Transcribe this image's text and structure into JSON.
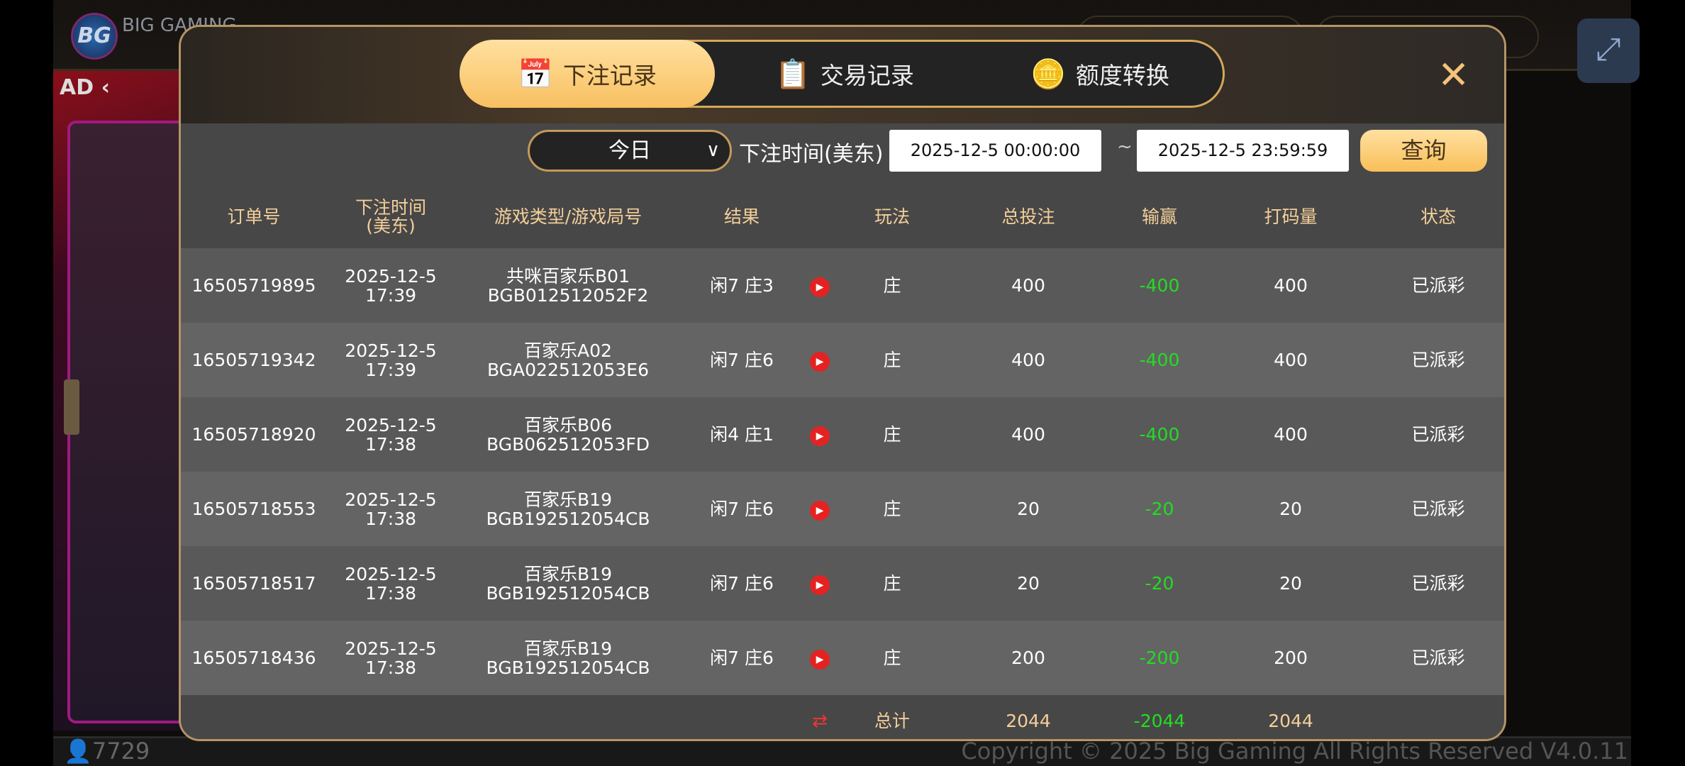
{
  "background": {
    "logo": "BG",
    "logo_text": "BIG GAMING",
    "ad_label": "AD ‹",
    "online_count": "7729",
    "copyright": "Copyright © 2025 Big Gaming All Rights Reserved  V4.0.11"
  },
  "modal": {
    "tabs": [
      {
        "label": "下注记录",
        "icon": "calendar-icon",
        "active": true
      },
      {
        "label": "交易记录",
        "icon": "clipboard-icon",
        "active": false
      },
      {
        "label": "额度转换",
        "icon": "coins-icon",
        "active": false
      }
    ],
    "close_icon": "✕",
    "filter": {
      "range": "今日",
      "time_label": "下注时间(美东)",
      "start": "2025-12-5 00:00:00",
      "tilde": "~",
      "end": "2025-12-5 23:59:59",
      "query": "查询"
    },
    "columns": [
      "订单号",
      "下注时间\n(美东)",
      "游戏类型/游戏局号",
      "结果",
      "",
      "玩法",
      "总投注",
      "输赢",
      "打码量",
      "状态"
    ],
    "rows": [
      {
        "order": "16505719895",
        "date": "2025-12-5",
        "time": "17:39",
        "game": "共咪百家乐B01",
        "round": "BGB012512052F2",
        "result": "闲7 庄3",
        "play": "庄",
        "bet": "400",
        "winloss": "-400",
        "turnover": "400",
        "status": "已派彩"
      },
      {
        "order": "16505719342",
        "date": "2025-12-5",
        "time": "17:39",
        "game": "百家乐A02",
        "round": "BGA022512053E6",
        "result": "闲7 庄6",
        "play": "庄",
        "bet": "400",
        "winloss": "-400",
        "turnover": "400",
        "status": "已派彩"
      },
      {
        "order": "16505718920",
        "date": "2025-12-5",
        "time": "17:38",
        "game": "百家乐B06",
        "round": "BGB062512053FD",
        "result": "闲4 庄1",
        "play": "庄",
        "bet": "400",
        "winloss": "-400",
        "turnover": "400",
        "status": "已派彩"
      },
      {
        "order": "16505718553",
        "date": "2025-12-5",
        "time": "17:38",
        "game": "百家乐B19",
        "round": "BGB192512054CB",
        "result": "闲7 庄6",
        "play": "庄",
        "bet": "20",
        "winloss": "-20",
        "turnover": "20",
        "status": "已派彩"
      },
      {
        "order": "16505718517",
        "date": "2025-12-5",
        "time": "17:38",
        "game": "百家乐B19",
        "round": "BGB192512054CB",
        "result": "闲7 庄6",
        "play": "庄",
        "bet": "20",
        "winloss": "-20",
        "turnover": "20",
        "status": "已派彩"
      },
      {
        "order": "16505718436",
        "date": "2025-12-5",
        "time": "17:38",
        "game": "百家乐B19",
        "round": "BGB192512054CB",
        "result": "闲7 庄6",
        "play": "庄",
        "bet": "200",
        "winloss": "-200",
        "turnover": "200",
        "status": "已派彩"
      }
    ],
    "total": {
      "label": "总计",
      "bet": "2044",
      "winloss": "-2044",
      "turnover": "2044"
    },
    "colors": {
      "accent": "#f8c060",
      "negative": "#22dd22",
      "header_text": "#f4cf9a"
    }
  }
}
